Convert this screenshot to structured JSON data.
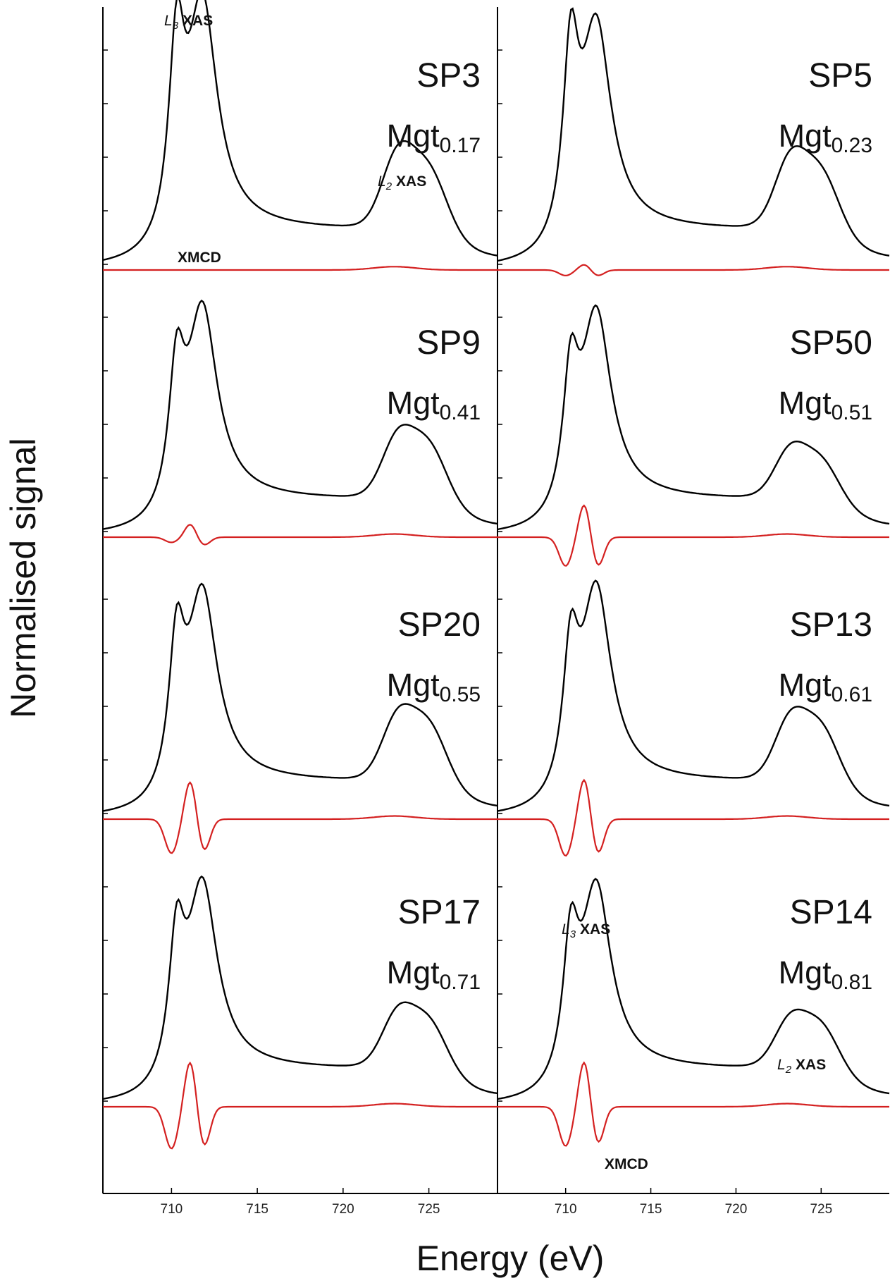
{
  "chart_data": {
    "type": "line",
    "xlabel": "Energy (eV)",
    "ylabel": "Normalised signal",
    "xlim": [
      706,
      729
    ],
    "x_ticks": [
      "710",
      "715",
      "720",
      "725"
    ],
    "series_colors": {
      "XAS": "#000000",
      "XMCD": "#d42020"
    },
    "panels": [
      {
        "id": "SP3",
        "sample": "SP3",
        "mgt_base": "Mgt",
        "mgt_sub": "0.17",
        "col": 0,
        "row": 0,
        "xas_peaks": {
          "L3a": 0.82,
          "L3b": 1.0,
          "L2a": 0.29,
          "L2b": 0.24
        },
        "xmcd": {
          "d1": 0.0,
          "p": 0.0,
          "d2": 0.0
        }
      },
      {
        "id": "SP5",
        "sample": "SP5",
        "mgt_base": "Mgt",
        "mgt_sub": "0.23",
        "col": 1,
        "row": 0,
        "xas_peaks": {
          "L3a": 0.8,
          "L3b": 0.9,
          "L2a": 0.27,
          "L2b": 0.23
        },
        "xmcd": {
          "d1": 0.02,
          "p": 0.02,
          "d2": 0.02
        }
      },
      {
        "id": "SP9",
        "sample": "SP9",
        "mgt_base": "Mgt",
        "mgt_sub": "0.41",
        "col": 0,
        "row": 1,
        "xas_peaks": {
          "L3a": 0.62,
          "L3b": 0.9,
          "L2a": 0.25,
          "L2b": 0.23
        },
        "xmcd": {
          "d1": 0.02,
          "p": 0.05,
          "d2": 0.03
        }
      },
      {
        "id": "SP50",
        "sample": "SP50",
        "mgt_base": "Mgt",
        "mgt_sub": "0.51",
        "col": 1,
        "row": 1,
        "xas_peaks": {
          "L3a": 0.6,
          "L3b": 0.88,
          "L2a": 0.19,
          "L2b": 0.16
        },
        "xmcd": {
          "d1": 0.11,
          "p": 0.13,
          "d2": 0.11
        }
      },
      {
        "id": "SP20",
        "sample": "SP20",
        "mgt_base": "Mgt",
        "mgt_sub": "0.55",
        "col": 0,
        "row": 2,
        "xas_peaks": {
          "L3a": 0.66,
          "L3b": 0.89,
          "L2a": 0.26,
          "L2b": 0.24
        },
        "xmcd": {
          "d1": 0.13,
          "p": 0.15,
          "d2": 0.12
        }
      },
      {
        "id": "SP13",
        "sample": "SP13",
        "mgt_base": "Mgt",
        "mgt_sub": "0.61",
        "col": 1,
        "row": 2,
        "xas_peaks": {
          "L3a": 0.62,
          "L3b": 0.91,
          "L2a": 0.25,
          "L2b": 0.23
        },
        "xmcd": {
          "d1": 0.14,
          "p": 0.16,
          "d2": 0.13
        }
      },
      {
        "id": "SP17",
        "sample": "SP17",
        "mgt_base": "Mgt",
        "mgt_sub": "0.71",
        "col": 0,
        "row": 3,
        "xas_peaks": {
          "L3a": 0.62,
          "L3b": 0.87,
          "L2a": 0.22,
          "L2b": 0.2
        },
        "xmcd": {
          "d1": 0.16,
          "p": 0.18,
          "d2": 0.15
        }
      },
      {
        "id": "SP14",
        "sample": "SP14",
        "mgt_base": "Mgt",
        "mgt_sub": "0.81",
        "col": 1,
        "row": 3,
        "xas_peaks": {
          "L3a": 0.61,
          "L3b": 0.86,
          "L2a": 0.19,
          "L2b": 0.18
        },
        "xmcd": {
          "d1": 0.15,
          "p": 0.18,
          "d2": 0.14
        }
      }
    ],
    "annotations": {
      "sp3_l3": {
        "it": "L",
        "sub": "3",
        "bold": "XAS"
      },
      "sp3_l2": {
        "it": "L",
        "sub": "2",
        "bold": "XAS"
      },
      "sp3_xmcd": "XMCD",
      "sp14_l3": {
        "it": "L",
        "sub": "3",
        "bold": "XAS"
      },
      "sp14_l2": {
        "it": "L",
        "sub": "2",
        "bold": "XAS"
      },
      "sp14_xmcd": "XMCD"
    }
  }
}
